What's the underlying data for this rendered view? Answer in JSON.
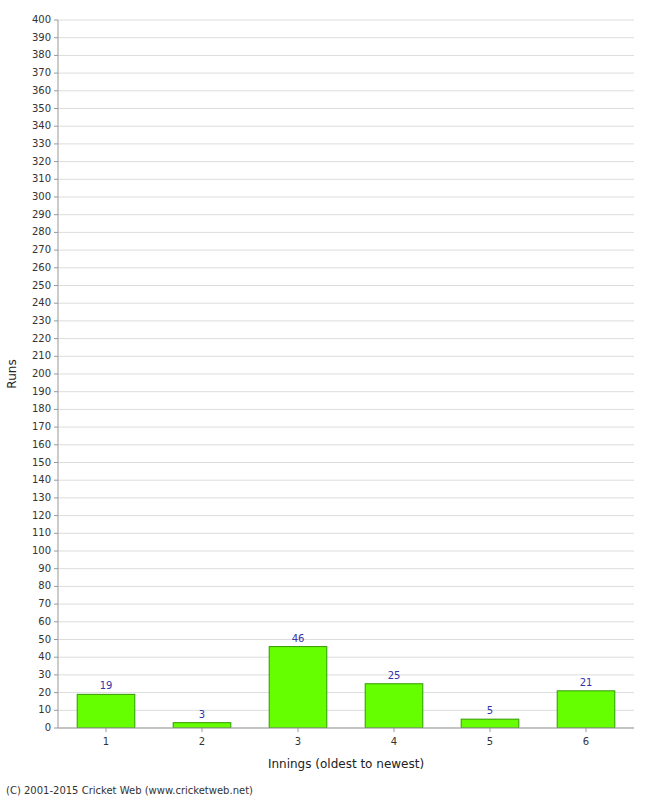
{
  "chart_data": {
    "type": "bar",
    "categories": [
      "1",
      "2",
      "3",
      "4",
      "5",
      "6"
    ],
    "values": [
      19,
      3,
      46,
      25,
      5,
      21
    ],
    "color": "#66ff00",
    "xlabel": "Innings (oldest to newest)",
    "ylabel": "Runs",
    "ylim": [
      0,
      400
    ],
    "yticks": [
      0,
      10,
      20,
      30,
      40,
      50,
      60,
      70,
      80,
      90,
      100,
      110,
      120,
      130,
      140,
      150,
      160,
      170,
      180,
      190,
      200,
      210,
      220,
      230,
      240,
      250,
      260,
      270,
      280,
      290,
      300,
      310,
      320,
      330,
      340,
      350,
      360,
      370,
      380,
      390,
      400
    ],
    "grid": true,
    "data_labels": true,
    "annotations": [
      "(C) 2001-2015 Cricket Web (www.cricketweb.net)"
    ]
  }
}
